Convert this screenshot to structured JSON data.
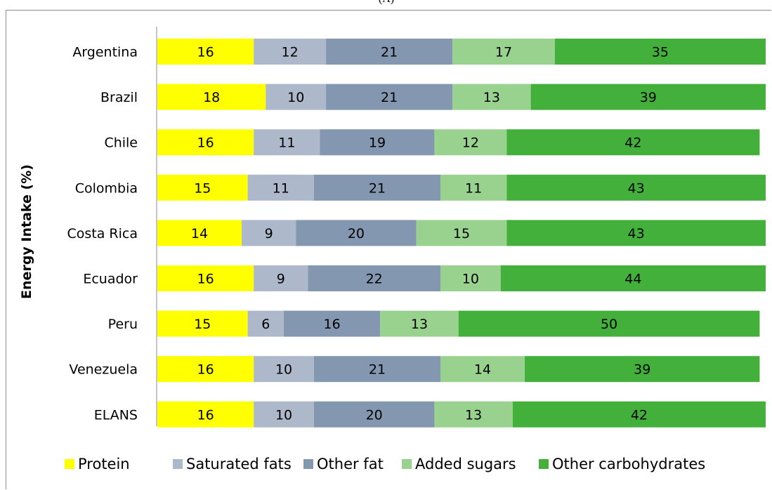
{
  "chart_data": {
    "type": "bar",
    "orientation": "horizontal",
    "stacked": true,
    "title": "(A)",
    "ylabel": "Energy Intake (%)",
    "xlabel": "",
    "categories": [
      "Argentina",
      "Brazil",
      "Chile",
      "Colombia",
      "Costa Rica",
      "Ecuador",
      "Peru",
      "Venezuela",
      "ELANS"
    ],
    "series": [
      {
        "name": "Protein",
        "color": "#FFFF00",
        "values": [
          16,
          18,
          16,
          15,
          14,
          16,
          15,
          16,
          16
        ]
      },
      {
        "name": "Saturated fats",
        "color": "#ADB9CA",
        "values": [
          12,
          10,
          11,
          11,
          9,
          9,
          6,
          10,
          10
        ]
      },
      {
        "name": "Other fat",
        "color": "#8497B0",
        "values": [
          21,
          21,
          19,
          21,
          20,
          22,
          16,
          21,
          20
        ]
      },
      {
        "name": "Added sugars",
        "color": "#99D18F",
        "values": [
          17,
          13,
          12,
          11,
          15,
          10,
          13,
          14,
          13
        ]
      },
      {
        "name": "Other carbohydrates",
        "color": "#43B03B",
        "values": [
          35,
          39,
          42,
          43,
          43,
          44,
          50,
          39,
          42
        ]
      }
    ],
    "xlim": [
      0,
      101
    ],
    "grid": false,
    "legend": "bottom",
    "data_labels": true
  }
}
